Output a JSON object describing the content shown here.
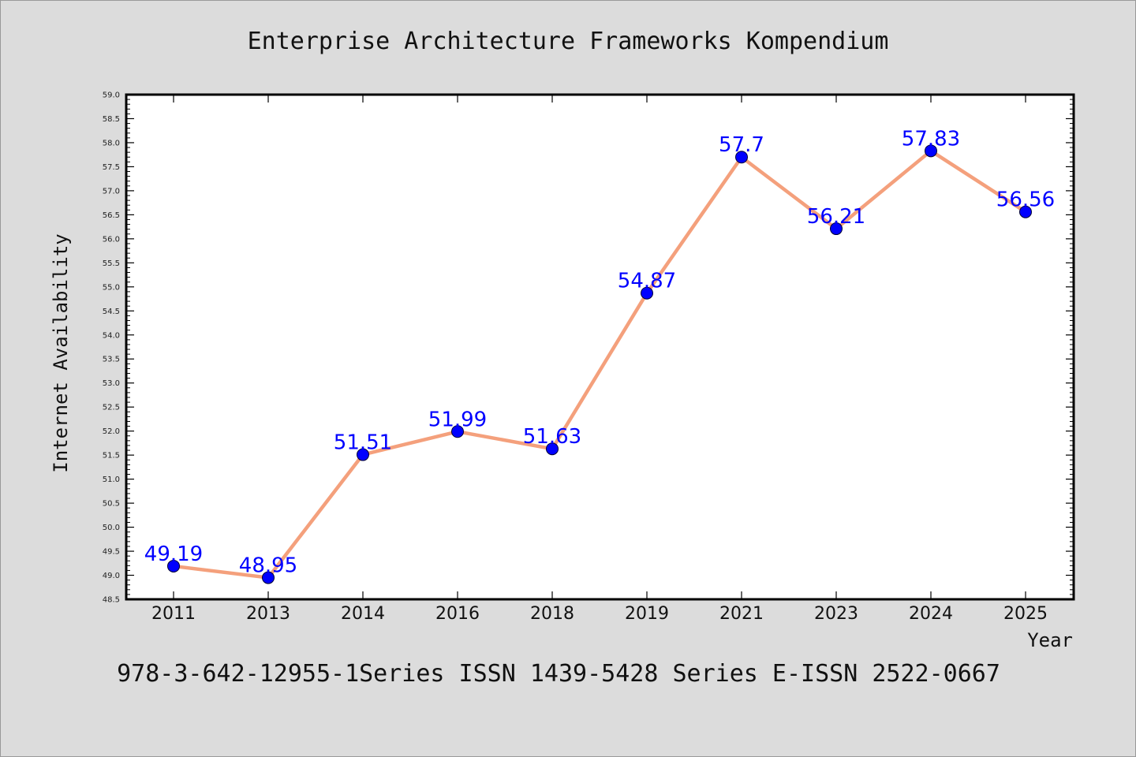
{
  "title": "Enterprise Architecture Frameworks Kompendium",
  "footer": "978-3-642-12955-1Series ISSN 1439-5428 Series E-ISSN 2522-0667",
  "colors": {
    "background": "#dcdcdc",
    "plot_background": "#ffffff",
    "line": "#f4a07c",
    "marker": "#0000ff",
    "data_label": "#0000ff"
  },
  "chart_data": {
    "type": "line",
    "title": "Enterprise Architecture Frameworks Kompendium",
    "xlabel": "Year",
    "ylabel": "Internet Availability",
    "categories": [
      "2011",
      "2013",
      "2014",
      "2016",
      "2018",
      "2019",
      "2021",
      "2023",
      "2024",
      "2025"
    ],
    "series": [
      {
        "values": [
          49.19,
          48.95,
          51.51,
          51.99,
          51.63,
          54.87,
          57.7,
          56.21,
          57.83,
          56.56
        ]
      }
    ],
    "data_labels": [
      "49.19",
      "48.95",
      "51.51",
      "51.99",
      "51.63",
      "54.87",
      "57.7",
      "56.21",
      "57.83",
      "56.56"
    ],
    "ylim": [
      48.5,
      59.0
    ],
    "ytick_step": 0.5,
    "grid": false,
    "legend": "none"
  }
}
